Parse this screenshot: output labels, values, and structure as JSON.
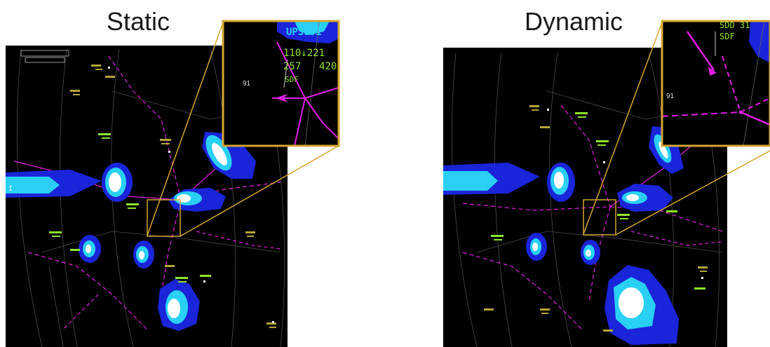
{
  "panels": {
    "static": {
      "title": "Static",
      "inset": {
        "callsign": "UPS891",
        "line_alt": "110↓221",
        "line_speed": "257",
        "line_speed_b": "420",
        "dest": "SDF",
        "sector": "91"
      }
    },
    "dynamic": {
      "title": "Dynamic",
      "inset": {
        "line_top": "SDD  31",
        "dest": "SDF",
        "sector": "91"
      }
    }
  },
  "colors": {
    "radar_bg": "#000000",
    "weather_light": "#2ad0f4",
    "weather_mid": "#1a24d8",
    "weather_core": "#ffffff",
    "route": "#e21ee6",
    "datablock": "#8ee42a",
    "callout": "#d6a632"
  }
}
